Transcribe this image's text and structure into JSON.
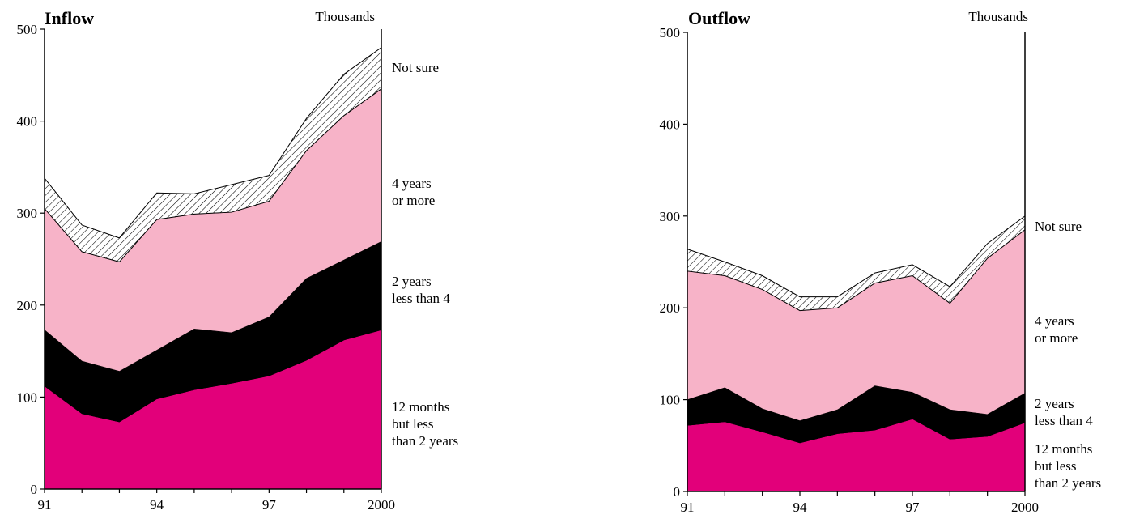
{
  "chart_data": [
    {
      "type": "area",
      "stacked": true,
      "title": "Inflow",
      "unit_label": "Thousands",
      "x": [
        1991,
        1992,
        1993,
        1994,
        1995,
        1996,
        1997,
        1998,
        1999,
        2000
      ],
      "x_tick_labels": [
        "91",
        "94",
        "97",
        "2000"
      ],
      "x_tick_values": [
        1991,
        1994,
        1997,
        2000
      ],
      "y_ticks": [
        0,
        100,
        200,
        300,
        400,
        500
      ],
      "y_tick_labels": [
        "0",
        "100",
        "200",
        "300",
        "400",
        "500"
      ],
      "ylim": [
        0,
        500
      ],
      "grid": false,
      "legend_placement": "right",
      "series": [
        {
          "name": "12 months but less than 2 years",
          "label_lines": [
            "12 months",
            "but less",
            "than 2 years"
          ],
          "color": "#e2007a",
          "values": [
            112,
            82,
            73,
            98,
            108,
            115,
            123,
            140,
            162,
            173
          ]
        },
        {
          "name": "2 years less than 4",
          "label_lines": [
            "2 years",
            "less than 4"
          ],
          "color": "#000000",
          "values": [
            61,
            57,
            55,
            53,
            66,
            55,
            64,
            89,
            87,
            96
          ]
        },
        {
          "name": "4 years or more",
          "label_lines": [
            "4 years",
            "or more"
          ],
          "color": "#f7b3c8",
          "values": [
            132,
            119,
            119,
            142,
            125,
            131,
            126,
            139,
            157,
            166
          ]
        },
        {
          "name": "Not sure",
          "label_lines": [
            "Not sure"
          ],
          "color": "hatch",
          "values": [
            33,
            29,
            26,
            29,
            22,
            30,
            28,
            35,
            45,
            45
          ]
        }
      ]
    },
    {
      "type": "area",
      "stacked": true,
      "title": "Outflow",
      "unit_label": "Thousands",
      "x": [
        1991,
        1992,
        1993,
        1994,
        1995,
        1996,
        1997,
        1998,
        1999,
        2000
      ],
      "x_tick_labels": [
        "91",
        "94",
        "97",
        "2000"
      ],
      "x_tick_values": [
        1991,
        1994,
        1997,
        2000
      ],
      "y_ticks": [
        0,
        100,
        200,
        300,
        400,
        500
      ],
      "y_tick_labels": [
        "0",
        "100",
        "200",
        "300",
        "400",
        "500"
      ],
      "ylim": [
        0,
        500
      ],
      "grid": false,
      "legend_placement": "right",
      "series": [
        {
          "name": "12 months but less than 2 years",
          "label_lines": [
            "12 months",
            "but less",
            "than 2 years"
          ],
          "color": "#e2007a",
          "values": [
            72,
            76,
            65,
            53,
            63,
            67,
            79,
            57,
            60,
            75
          ]
        },
        {
          "name": "2 years less than 4",
          "label_lines": [
            "2 years",
            "less than 4"
          ],
          "color": "#000000",
          "values": [
            28,
            37,
            25,
            24,
            26,
            48,
            29,
            32,
            24,
            32
          ]
        },
        {
          "name": "4 years or more",
          "label_lines": [
            "4 years",
            "or more"
          ],
          "color": "#f7b3c8",
          "values": [
            140,
            122,
            130,
            120,
            111,
            112,
            127,
            116,
            170,
            178
          ]
        },
        {
          "name": "Not sure",
          "label_lines": [
            "Not sure"
          ],
          "color": "hatch",
          "values": [
            24,
            15,
            15,
            15,
            12,
            11,
            12,
            18,
            16,
            15
          ]
        }
      ]
    }
  ]
}
